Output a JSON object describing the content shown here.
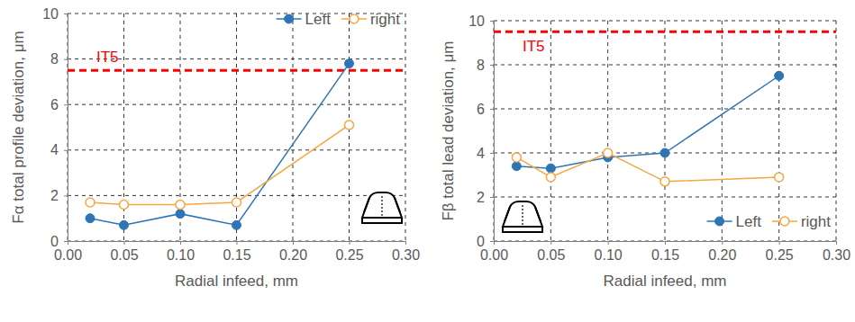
{
  "chart_data": [
    {
      "type": "line",
      "y_label": "Fα total profile deviation, μm",
      "x_label": "Radial infeed, mm",
      "x": [
        0.02,
        0.05,
        0.1,
        0.15,
        0.25
      ],
      "series": [
        {
          "name": "Left",
          "color": "#2e75b6",
          "marker": "filled-circle",
          "values": [
            1.0,
            0.7,
            1.2,
            0.7,
            7.8
          ]
        },
        {
          "name": "right",
          "color": "#f5a742",
          "marker": "open-circle",
          "values": [
            1.7,
            1.6,
            1.6,
            1.7,
            5.1
          ]
        }
      ],
      "xlim": [
        0,
        0.3
      ],
      "xticks": [
        {
          "value": 0,
          "label": "0.00"
        },
        {
          "value": 0.05,
          "label": "0.05"
        },
        {
          "value": 0.1,
          "label": "0.10"
        },
        {
          "value": 0.15,
          "label": "0.15"
        },
        {
          "value": 0.2,
          "label": "0.20"
        },
        {
          "value": 0.25,
          "label": "0.25"
        },
        {
          "value": 0.3,
          "label": "0.30"
        }
      ],
      "ylim": [
        0,
        10
      ],
      "yticks": [
        0,
        2,
        4,
        6,
        8,
        10
      ],
      "grid": true,
      "legend": "upper right",
      "annotations": [
        {
          "text": "IT5",
          "y": 7.5,
          "color": "#ff0000",
          "line_style": "dashed"
        }
      ]
    },
    {
      "type": "line",
      "y_label": "Fβ total lead deviation, μm",
      "x_label": "Radial infeed, mm",
      "x": [
        0.02,
        0.05,
        0.1,
        0.15,
        0.25
      ],
      "series": [
        {
          "name": "Left",
          "color": "#2e75b6",
          "marker": "filled-circle",
          "values": [
            3.4,
            3.3,
            3.8,
            4.0,
            7.5
          ]
        },
        {
          "name": "right",
          "color": "#f5a742",
          "marker": "open-circle",
          "values": [
            3.8,
            2.9,
            4.0,
            2.7,
            2.9
          ]
        }
      ],
      "xlim": [
        0,
        0.3
      ],
      "xticks": [
        {
          "value": 0,
          "label": "0.00"
        },
        {
          "value": 0.05,
          "label": "0.05"
        },
        {
          "value": 0.1,
          "label": "0.10"
        },
        {
          "value": 0.15,
          "label": "0.15"
        },
        {
          "value": 0.2,
          "label": "0.20"
        },
        {
          "value": 0.25,
          "label": "0.25"
        },
        {
          "value": 0.3,
          "label": "0.30"
        }
      ],
      "ylim": [
        0,
        10
      ],
      "yticks": [
        0,
        2,
        4,
        6,
        8,
        10
      ],
      "grid": true,
      "legend": "lower right",
      "annotations": [
        {
          "text": "IT5",
          "y": 9.5,
          "color": "#ff0000",
          "line_style": "dashed"
        }
      ]
    }
  ]
}
